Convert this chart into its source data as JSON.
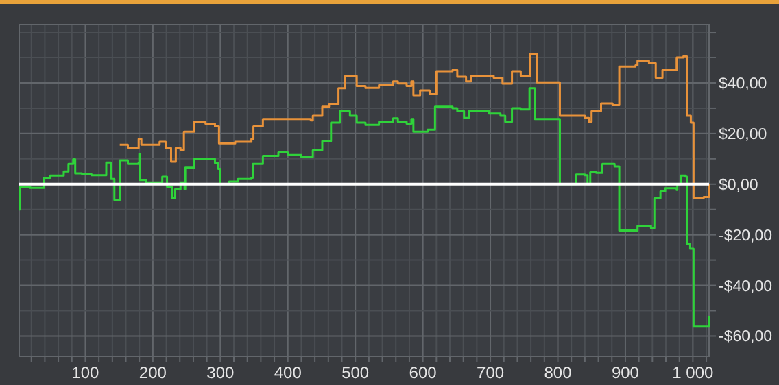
{
  "chart_data": {
    "type": "step",
    "xlim": [
      2,
      1024
    ],
    "ylim": [
      -68,
      63
    ],
    "xticks": [
      {
        "value": 20,
        "label": null
      },
      {
        "value": 40,
        "label": null
      },
      {
        "value": 60,
        "label": null
      },
      {
        "value": 80,
        "label": null
      },
      100,
      {
        "value": 120,
        "label": null
      },
      {
        "value": 140,
        "label": null
      },
      {
        "value": 160,
        "label": null
      },
      {
        "value": 180,
        "label": null
      },
      200,
      {
        "value": 220,
        "label": null
      },
      {
        "value": 240,
        "label": null
      },
      {
        "value": 260,
        "label": null
      },
      {
        "value": 280,
        "label": null
      },
      300,
      {
        "value": 320,
        "label": null
      },
      {
        "value": 340,
        "label": null
      },
      {
        "value": 360,
        "label": null
      },
      {
        "value": 380,
        "label": null
      },
      400,
      {
        "value": 420,
        "label": null
      },
      {
        "value": 440,
        "label": null
      },
      {
        "value": 460,
        "label": null
      },
      {
        "value": 480,
        "label": null
      },
      500,
      {
        "value": 520,
        "label": null
      },
      {
        "value": 540,
        "label": null
      },
      {
        "value": 560,
        "label": null
      },
      {
        "value": 580,
        "label": null
      },
      600,
      {
        "value": 620,
        "label": null
      },
      {
        "value": 640,
        "label": null
      },
      {
        "value": 660,
        "label": null
      },
      {
        "value": 680,
        "label": null
      },
      700,
      {
        "value": 720,
        "label": null
      },
      {
        "value": 740,
        "label": null
      },
      {
        "value": 760,
        "label": null
      },
      {
        "value": 780,
        "label": null
      },
      800,
      {
        "value": 820,
        "label": null
      },
      {
        "value": 840,
        "label": null
      },
      {
        "value": 860,
        "label": null
      },
      {
        "value": 880,
        "label": null
      },
      900,
      {
        "value": 920,
        "label": null
      },
      {
        "value": 940,
        "label": null
      },
      {
        "value": 960,
        "label": null
      },
      {
        "value": 980,
        "label": null
      },
      {
        "value": 1000,
        "label": "1 000"
      },
      {
        "value": 1020,
        "label": null
      }
    ],
    "yticks": [
      {
        "value": -60,
        "label": "-$60,00"
      },
      {
        "value": -50,
        "label": null
      },
      {
        "value": -40,
        "label": "-$40,00"
      },
      {
        "value": -30,
        "label": null
      },
      {
        "value": -20,
        "label": "-$20,00"
      },
      {
        "value": -10,
        "label": null
      },
      {
        "value": 0,
        "label": "$0,00"
      },
      {
        "value": 10,
        "label": null
      },
      {
        "value": 20,
        "label": "$20,00"
      },
      {
        "value": 30,
        "label": null
      },
      {
        "value": 40,
        "label": "$40,00"
      },
      {
        "value": 50,
        "label": null
      },
      {
        "value": 60,
        "label": null
      }
    ],
    "grid": true,
    "line_style": "solid",
    "marker": "none",
    "ref_lines": [
      {
        "axis": "y",
        "value": 0,
        "color": "#ffffff"
      }
    ],
    "series": [
      {
        "color": "#2fd23a",
        "x": [
          2,
          3,
          18,
          39,
          48,
          68,
          75,
          82,
          85,
          95,
          109,
          131,
          138,
          143,
          151,
          163,
          179,
          180,
          181,
          190,
          214,
          221,
          229,
          233,
          241,
          247,
          248,
          261,
          292,
          297,
          300,
          313,
          326,
          346,
          348,
          363,
          386,
          400,
          420,
          437,
          451,
          464,
          477,
          492,
          502,
          515,
          535,
          556,
          563,
          576,
          583,
          586,
          607,
          618,
          644,
          651,
          661,
          668,
          698,
          715,
          722,
          732,
          745,
          758,
          766,
          793,
          803,
          827,
          840,
          844,
          848,
          857,
          866,
          884,
          891,
          915,
          918,
          938,
          943,
          952,
          959,
          976,
          977,
          982,
          989,
          991,
          996,
          1001,
          1016,
          1024
        ],
        "values": [
          -10,
          -1,
          -1.5,
          2.5,
          3.4,
          5,
          8,
          9.8,
          4.3,
          4,
          3.5,
          8.5,
          2,
          -6.2,
          9.4,
          8,
          8.5,
          12,
          1.6,
          0.7,
          2.9,
          -1,
          -5.6,
          -2,
          0.7,
          -2,
          6.5,
          10,
          8.3,
          6,
          0,
          1,
          2,
          2.5,
          8,
          11.2,
          12.5,
          11.5,
          10.7,
          13.4,
          17,
          24.3,
          28.8,
          27,
          24.3,
          23.4,
          24.6,
          26,
          24.6,
          23.9,
          25.7,
          20.7,
          21.5,
          30.6,
          30,
          28.8,
          26.1,
          28.8,
          27.9,
          27,
          24.6,
          30,
          29.5,
          37.9,
          25.7,
          25.7,
          0,
          3.8,
          3.5,
          0,
          4.7,
          4.5,
          8,
          7,
          -18.3,
          -18.3,
          -16.5,
          -17.4,
          -5.6,
          -2.9,
          -1.6,
          -2.3,
          0,
          3.4,
          3,
          -23.7,
          -25.5,
          -56.3,
          -56.3,
          -52.2
        ]
      },
      {
        "color": "#e8923a",
        "x": [
          151,
          163,
          179,
          183,
          210,
          219,
          227,
          234,
          241,
          246,
          261,
          278,
          292,
          298,
          322,
          346,
          349,
          363,
          393,
          434,
          437,
          451,
          461,
          475,
          485,
          502,
          515,
          535,
          556,
          563,
          576,
          583,
          586,
          596,
          610,
          620,
          644,
          651,
          664,
          671,
          705,
          718,
          732,
          745,
          759,
          769,
          793,
          803,
          827,
          840,
          846,
          850,
          864,
          881,
          891,
          915,
          918,
          935,
          945,
          955,
          976,
          986,
          991,
          997,
          1001,
          1016,
          1024
        ],
        "values": [
          15.6,
          14.3,
          17.9,
          15.6,
          16.7,
          14.3,
          8.9,
          14.3,
          13.5,
          20.7,
          24.6,
          23.9,
          22.8,
          16.1,
          16.7,
          17.9,
          22.8,
          25.7,
          25.7,
          25.2,
          27,
          30.6,
          31.5,
          37.9,
          42.8,
          38.8,
          38,
          39.1,
          40.6,
          39.8,
          38.8,
          40.6,
          35.1,
          37,
          35.5,
          44.6,
          45.1,
          42.4,
          40.6,
          42.8,
          42,
          39.7,
          44.6,
          42.8,
          51.4,
          40.2,
          40.2,
          27,
          27,
          26.1,
          24.6,
          28.8,
          31.9,
          31.2,
          46.4,
          46.9,
          48.7,
          47.8,
          42,
          45.1,
          50,
          50.5,
          27,
          24.3,
          -5.6,
          -5.1,
          0
        ]
      }
    ]
  }
}
